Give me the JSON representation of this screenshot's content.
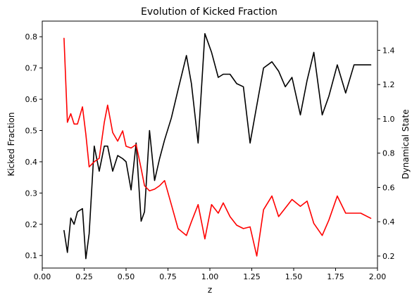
{
  "chart_data": {
    "type": "line",
    "title": "Evolution of Kicked Fraction",
    "xlabel": "z",
    "ylabel_left": "Kicked Fraction",
    "ylabel_right": "Dynamical State",
    "xlim": [
      0.0,
      2.0
    ],
    "ylim_left": [
      0.06,
      0.85
    ],
    "ylim_right": [
      0.13,
      1.57
    ],
    "x_ticks": [
      "0.00",
      "0.25",
      "0.50",
      "0.75",
      "1.00",
      "1.25",
      "1.50",
      "1.75",
      "2.00"
    ],
    "y_ticks_left": [
      "0.1",
      "0.2",
      "0.3",
      "0.4",
      "0.5",
      "0.6",
      "0.7",
      "0.8"
    ],
    "y_ticks_right": [
      "0.2",
      "0.4",
      "0.6",
      "0.8",
      "1.0",
      "1.2",
      "1.4"
    ],
    "grid": false,
    "series": [
      {
        "axis": "left",
        "color": "#000000",
        "x": [
          0.13,
          0.15,
          0.17,
          0.19,
          0.21,
          0.24,
          0.26,
          0.28,
          0.31,
          0.34,
          0.37,
          0.39,
          0.42,
          0.45,
          0.48,
          0.5,
          0.53,
          0.56,
          0.59,
          0.61,
          0.64,
          0.67,
          0.7,
          0.73,
          0.77,
          0.81,
          0.86,
          0.89,
          0.93,
          0.97,
          1.01,
          1.05,
          1.08,
          1.12,
          1.16,
          1.2,
          1.24,
          1.28,
          1.32,
          1.37,
          1.41,
          1.45,
          1.49,
          1.54,
          1.58,
          1.62,
          1.67,
          1.71,
          1.76,
          1.81,
          1.86,
          1.9,
          1.96
        ],
        "values": [
          0.18,
          0.11,
          0.22,
          0.2,
          0.24,
          0.25,
          0.09,
          0.17,
          0.45,
          0.37,
          0.45,
          0.45,
          0.37,
          0.42,
          0.41,
          0.4,
          0.31,
          0.46,
          0.21,
          0.24,
          0.5,
          0.34,
          0.41,
          0.47,
          0.54,
          0.63,
          0.74,
          0.65,
          0.46,
          0.81,
          0.75,
          0.67,
          0.68,
          0.68,
          0.65,
          0.64,
          0.46,
          0.58,
          0.7,
          0.72,
          0.69,
          0.64,
          0.67,
          0.55,
          0.66,
          0.75,
          0.55,
          0.61,
          0.71,
          0.62,
          0.71,
          0.71,
          0.71
        ]
      },
      {
        "axis": "right",
        "color": "#ff0000",
        "x": [
          0.13,
          0.15,
          0.17,
          0.19,
          0.21,
          0.24,
          0.26,
          0.28,
          0.31,
          0.34,
          0.37,
          0.39,
          0.42,
          0.45,
          0.48,
          0.5,
          0.53,
          0.56,
          0.59,
          0.61,
          0.64,
          0.67,
          0.7,
          0.73,
          0.77,
          0.81,
          0.86,
          0.89,
          0.93,
          0.97,
          1.01,
          1.05,
          1.08,
          1.12,
          1.16,
          1.2,
          1.24,
          1.28,
          1.32,
          1.37,
          1.41,
          1.45,
          1.49,
          1.54,
          1.58,
          1.62,
          1.67,
          1.71,
          1.76,
          1.81,
          1.86,
          1.9,
          1.96
        ],
        "values": [
          1.47,
          0.98,
          1.03,
          0.97,
          0.97,
          1.07,
          0.91,
          0.72,
          0.75,
          0.77,
          0.98,
          1.08,
          0.92,
          0.87,
          0.93,
          0.84,
          0.83,
          0.85,
          0.71,
          0.61,
          0.58,
          0.59,
          0.61,
          0.64,
          0.5,
          0.36,
          0.32,
          0.4,
          0.5,
          0.3,
          0.5,
          0.45,
          0.51,
          0.43,
          0.38,
          0.36,
          0.37,
          0.2,
          0.47,
          0.55,
          0.43,
          0.48,
          0.53,
          0.49,
          0.52,
          0.39,
          0.32,
          0.41,
          0.55,
          0.45,
          0.45,
          0.45,
          0.42
        ]
      }
    ]
  }
}
